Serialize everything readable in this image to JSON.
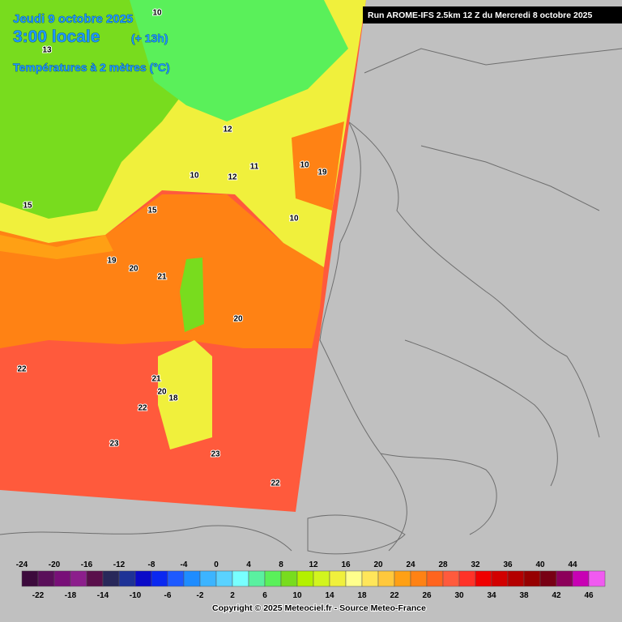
{
  "header": {
    "date": "Jeudi 9 octobre 2025",
    "time": "3:00 locale",
    "offset": "(+ 13h)",
    "parameter": "Températures à 2 mètres (°C)"
  },
  "run_info": "Run AROME-IFS 2.5km 12 Z du Mercredi 8 octobre 2025",
  "map_labels": [
    19,
    20,
    21,
    20,
    22,
    22,
    23,
    23,
    22,
    19,
    10,
    10,
    12,
    11,
    21,
    20,
    18,
    10,
    12,
    15,
    15,
    13,
    10
  ],
  "colorbar": {
    "ticks_top": [
      -24,
      -20,
      -16,
      -12,
      -8,
      -4,
      0,
      4,
      8,
      12,
      16,
      20,
      24,
      28,
      32,
      36,
      40,
      44
    ],
    "ticks_bottom": [
      -22,
      -18,
      -14,
      -10,
      -6,
      -2,
      2,
      6,
      10,
      14,
      18,
      22,
      26,
      30,
      34,
      38,
      42,
      46
    ],
    "colors": [
      "#3c0a3c",
      "#5a0f5a",
      "#780f78",
      "#8c1e8c",
      "#5a0f4b",
      "#28285a",
      "#1e3296",
      "#0a0ac8",
      "#0a28f0",
      "#1e5aff",
      "#1e8cff",
      "#3cb4ff",
      "#5ad2ff",
      "#78ffff",
      "#5af0a0",
      "#5af05a",
      "#78dc1e",
      "#b4f000",
      "#d2f51e",
      "#f0f03c",
      "#ffff8c",
      "#ffe65a",
      "#ffc83c",
      "#ffa014",
      "#ff8214",
      "#ff641e",
      "#ff5a3c",
      "#ff3228",
      "#f00000",
      "#d20000",
      "#b40000",
      "#960000",
      "#780014",
      "#8c005a",
      "#c800b4",
      "#f05af0"
    ]
  },
  "copyright": "Copyright © 2025 Meteociel.fr - Source Meteo-France"
}
